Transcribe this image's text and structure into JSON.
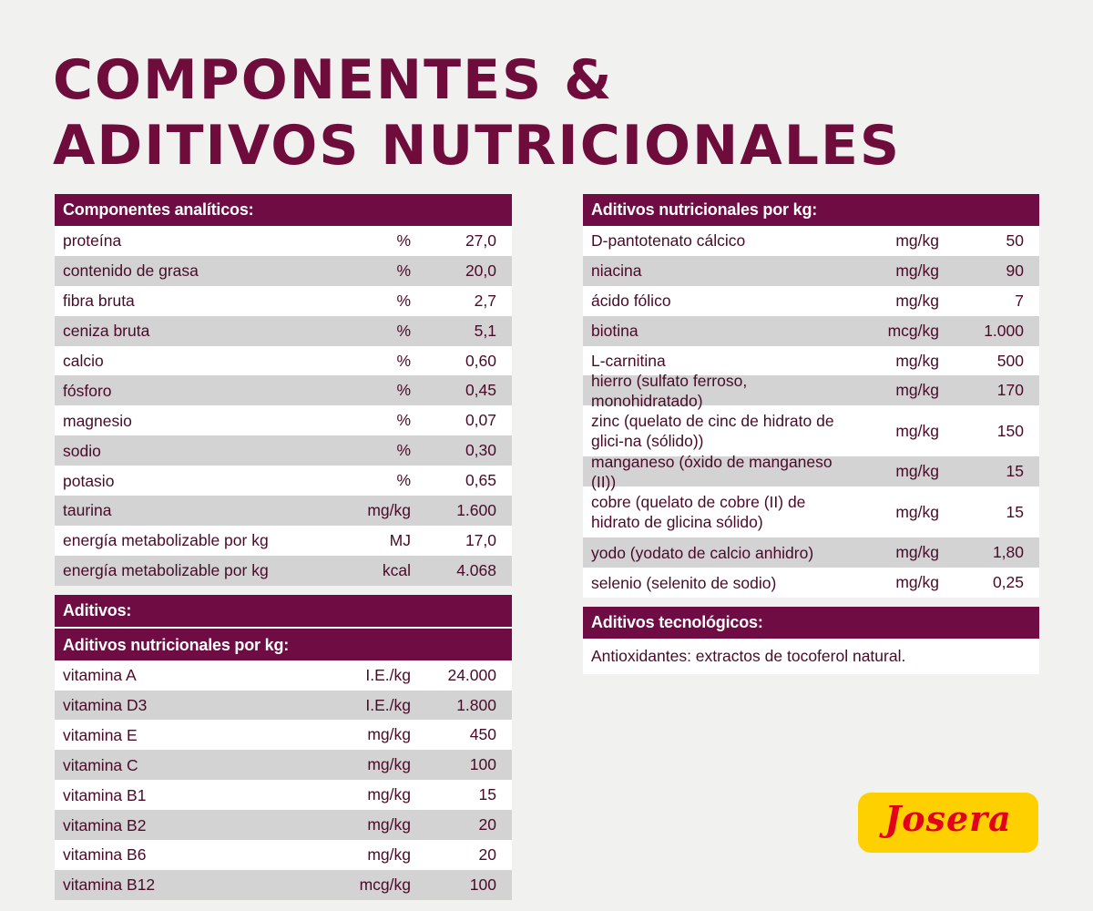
{
  "title": {
    "line1": "COMPONENTES &",
    "line2": "ADITIVOS NUTRICIONALES"
  },
  "analytic": {
    "header": "Componentes analíticos:",
    "rows": [
      {
        "name": "proteína",
        "unit": "%",
        "value": "27,0"
      },
      {
        "name": "contenido de grasa",
        "unit": "%",
        "value": "20,0"
      },
      {
        "name": "fibra bruta",
        "unit": "%",
        "value": "2,7"
      },
      {
        "name": "ceniza bruta",
        "unit": "%",
        "value": "5,1"
      },
      {
        "name": "calcio",
        "unit": "%",
        "value": "0,60"
      },
      {
        "name": "fósforo",
        "unit": "%",
        "value": "0,45"
      },
      {
        "name": "magnesio",
        "unit": "%",
        "value": "0,07"
      },
      {
        "name": "sodio",
        "unit": "%",
        "value": "0,30"
      },
      {
        "name": "potasio",
        "unit": "%",
        "value": "0,65"
      },
      {
        "name": "taurina",
        "unit": "mg/kg",
        "value": "1.600"
      },
      {
        "name": "energía metabolizable por kg",
        "unit": "MJ",
        "value": "17,0"
      },
      {
        "name": "energía metabolizable por kg",
        "unit": "kcal",
        "value": "4.068"
      }
    ]
  },
  "additives": {
    "header": "Aditivos:",
    "subheader": "Aditivos nutricionales por kg:",
    "rows": [
      {
        "name": "vitamina A",
        "unit": "I.E./kg",
        "value": "24.000"
      },
      {
        "name": "vitamina D3",
        "unit": "I.E./kg",
        "value": "1.800"
      },
      {
        "name": "vitamina E",
        "unit": "mg/kg",
        "value": "450"
      },
      {
        "name": "vitamina C",
        "unit": "mg/kg",
        "value": "100"
      },
      {
        "name": "vitamina B1",
        "unit": "mg/kg",
        "value": "15"
      },
      {
        "name": "vitamina B2",
        "unit": "mg/kg",
        "value": "20"
      },
      {
        "name": "vitamina B6",
        "unit": "mg/kg",
        "value": "20"
      },
      {
        "name": "vitamina B12",
        "unit": "mcg/kg",
        "value": "100"
      }
    ]
  },
  "nutritional": {
    "header": "Aditivos nutricionales por kg:",
    "rows": [
      {
        "name": "D-pantotenato cálcico",
        "unit": "mg/kg",
        "value": "50"
      },
      {
        "name": "niacina",
        "unit": "mg/kg",
        "value": "90"
      },
      {
        "name": "ácido fólico",
        "unit": "mg/kg",
        "value": "7"
      },
      {
        "name": "biotina",
        "unit": "mcg/kg",
        "value": "1.000"
      },
      {
        "name": "L-carnitina",
        "unit": "mg/kg",
        "value": "500"
      },
      {
        "name": "hierro (sulfato ferroso, monohidratado)",
        "unit": "mg/kg",
        "value": "170"
      },
      {
        "name": "zinc (quelato de cinc de hidrato de glici-na (sólido))",
        "unit": "mg/kg",
        "value": "150"
      },
      {
        "name": "manganeso (óxido de manganeso (II))",
        "unit": "mg/kg",
        "value": "15"
      },
      {
        "name": "cobre (quelato de cobre (II) de hidrato de glicina sólido)",
        "unit": "mg/kg",
        "value": "15"
      },
      {
        "name": "yodo (yodato de calcio anhidro)",
        "unit": "mg/kg",
        "value": "1,80"
      },
      {
        "name": "selenio (selenito de sodio)",
        "unit": "mg/kg",
        "value": "0,25"
      }
    ]
  },
  "technological": {
    "header": "Aditivos tecnológicos:",
    "text": "Antioxidantes: extractos de tocoferol natural."
  },
  "logo": {
    "text": "Josera"
  },
  "colors": {
    "brand": "#6e0c43",
    "alt_row": "#d3d3d3",
    "logo_bg": "#ffd000",
    "logo_text": "#e2001a"
  }
}
